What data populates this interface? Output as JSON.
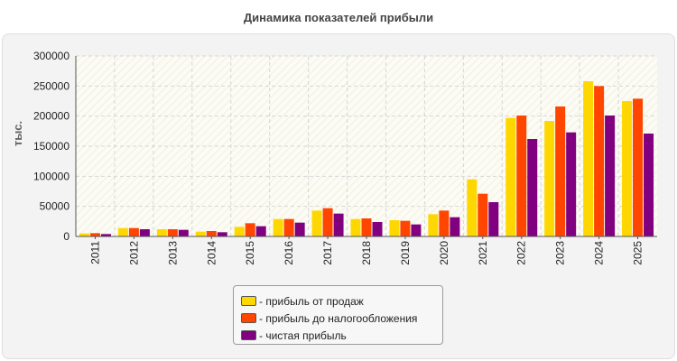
{
  "chart_data": {
    "type": "bar",
    "title": "Динамика показателей прибыли",
    "ylabel": "тыс.",
    "xlabel": "",
    "ylim": [
      0,
      300000
    ],
    "yticks": [
      0,
      50000,
      100000,
      150000,
      200000,
      250000,
      300000
    ],
    "grid": true,
    "legend": "bottom",
    "categories": [
      "2011",
      "2012",
      "2013",
      "2014",
      "2015",
      "2016",
      "2017",
      "2018",
      "2019",
      "2020",
      "2021",
      "2022",
      "2023",
      "2024",
      "2025"
    ],
    "series": [
      {
        "name": "- прибыль от продаж",
        "color": "#ffd700",
        "values": [
          5000,
          14000,
          12000,
          8000,
          16000,
          29000,
          43000,
          29000,
          27000,
          37000,
          95000,
          197000,
          192000,
          258000,
          225000
        ]
      },
      {
        "name": "- прибыль до налогообложения",
        "color": "#ff4500",
        "values": [
          5500,
          14000,
          12000,
          9000,
          22000,
          29000,
          47000,
          30000,
          26000,
          43000,
          71000,
          201000,
          216000,
          250000,
          229000
        ]
      },
      {
        "name": "- чистая прибыль",
        "color": "#800080",
        "values": [
          4000,
          12000,
          11000,
          7000,
          17000,
          23000,
          38000,
          24000,
          20000,
          32000,
          57000,
          162000,
          173000,
          201000,
          171000
        ]
      }
    ]
  }
}
